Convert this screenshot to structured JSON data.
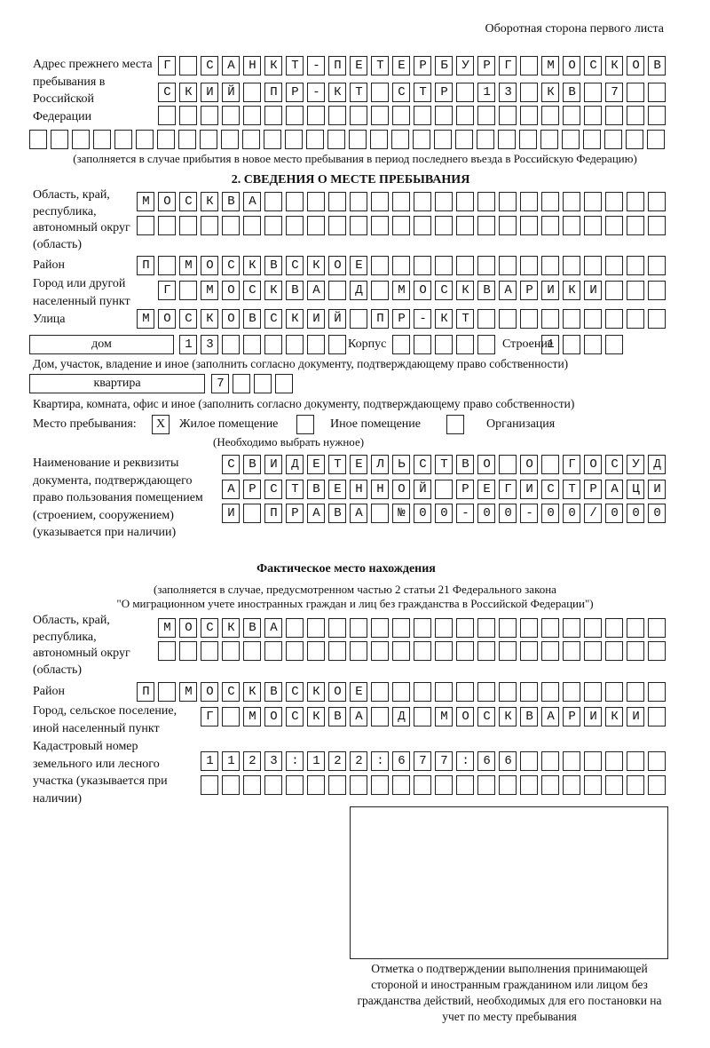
{
  "header": "Оборотная сторона первого листа",
  "prev_address": {
    "label": "Адрес прежнего места пребывания в Российской Федерации",
    "rows": [
      "Г САНКТ-ПЕТЕРБУРГ МОСКОВ",
      "СКИЙ ПР-КТ СТР 13 КВ 7  ",
      "                        ",
      "                              "
    ],
    "note": "(заполняется в случае прибытия в новое место пребывания в период последнего въезда в Российскую Федерацию)"
  },
  "section2": {
    "title": "2. СВЕДЕНИЯ О МЕСТЕ ПРЕБЫВАНИЯ",
    "region_label": "Область, край, республика, автономный округ (область)",
    "region_rows": [
      "МОСКВА                   ",
      "                         "
    ],
    "district_label": "Район",
    "district": "П МОСКВСКОЕ              ",
    "city_label": "Город или другой населенный пункт",
    "city": "Г МОСКВА Д МОСКВАРИКИ   ",
    "street_label": "Улица",
    "street": "МОСКОВСКИЙ ПР-КТ         ",
    "house_type": "дом",
    "house": "13      ",
    "korpus_label": "Корпус",
    "korpus": "     ",
    "building_label": "Строение",
    "building": "1   ",
    "house_note": "Дом, участок, владение и иное (заполнить согласно документу, подтверждающему право собственности)",
    "apt_type": "квартира",
    "apt": "7   ",
    "apt_note": "Квартира, комната, офис и иное (заполнить согласно документу, подтверждающему право собственности)",
    "stay_label": "Место пребывания:",
    "stay_options": [
      {
        "label": "Жилое помещение",
        "mark": "X"
      },
      {
        "label": "Иное помещение",
        "mark": ""
      },
      {
        "label": "Организация",
        "mark": ""
      }
    ],
    "stay_note": "(Необходимо выбрать нужное)",
    "doc_label": "Наименование и реквизиты документа, подтверждающего право пользования помещением (строением, сооружением) (указывается при наличии)",
    "doc_rows": [
      "СВИДЕТЕЛЬСТВО О ГОСУД",
      "АРСТВЕННОЙ РЕГИСТРАЦИ",
      "И ПРАВА №00-00-00/000"
    ]
  },
  "actual": {
    "title": "Фактическое место нахождения",
    "note1": "(заполняется в случае, предусмотренном частью 2 статьи 21 Федерального закона",
    "note2": "\"О миграционном учете иностранных граждан и лиц без гражданства в Российской Федерации\")",
    "region_label": "Область, край, республика, автономный округ (область)",
    "region_rows": [
      "МОСКВА                  ",
      "                        "
    ],
    "district_label": "Район",
    "district": "П МОСКВСКОЕ              ",
    "city_label": "Город, сельское поселение, иной населенный пункт",
    "city": "Г МОСКВА Д МОСКВАРИКИ ",
    "cadastre_label": "Кадастровый номер земельного или лесного участка (указывается при наличии)",
    "cadastre_rows": [
      "1123:122:677:66       ",
      "                      "
    ]
  },
  "stamp_caption": "Отметка о подтверждении выполнения принимающей стороной и иностранным гражданином или лицом без гражданства действий, необходимых для его постановки на учет по месту пребывания"
}
